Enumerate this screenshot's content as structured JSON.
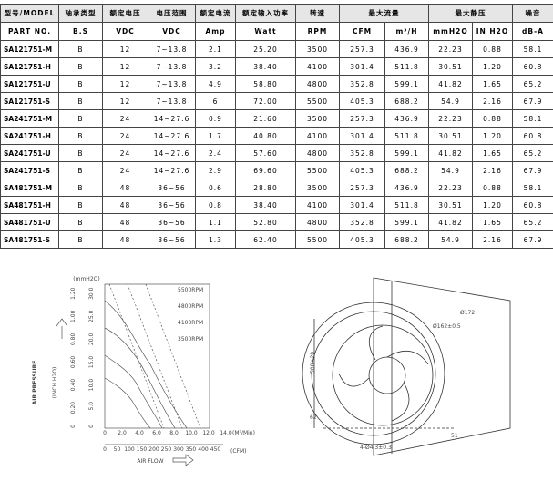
{
  "table": {
    "header_top": [
      "型号/MODEL",
      "轴承类型",
      "额定电压",
      "电压范围",
      "额定电流",
      "额定输入功率",
      "转速",
      "最大流量",
      "最大静压",
      "噪音"
    ],
    "header_units": [
      "PART NO.",
      "B.S",
      "VDC",
      "VDC",
      "Amp",
      "Watt",
      "RPM",
      "CFM",
      "m³/H",
      "mmH2O",
      "IN H2O",
      "dB-A"
    ],
    "rows": [
      [
        "SA121751-M",
        "B",
        "12",
        "7~13.8",
        "2.1",
        "25.20",
        "3500",
        "257.3",
        "436.9",
        "22.23",
        "0.88",
        "58.1"
      ],
      [
        "SA121751-H",
        "B",
        "12",
        "7~13.8",
        "3.2",
        "38.40",
        "4100",
        "301.4",
        "511.8",
        "30.51",
        "1.20",
        "60.8"
      ],
      [
        "SA121751-U",
        "B",
        "12",
        "7~13.8",
        "4.9",
        "58.80",
        "4800",
        "352.8",
        "599.1",
        "41.82",
        "1.65",
        "65.2"
      ],
      [
        "SA121751-S",
        "B",
        "12",
        "7~13.8",
        "6",
        "72.00",
        "5500",
        "405.3",
        "688.2",
        "54.9",
        "2.16",
        "67.9"
      ],
      [
        "SA241751-M",
        "B",
        "24",
        "14~27.6",
        "0.9",
        "21.60",
        "3500",
        "257.3",
        "436.9",
        "22.23",
        "0.88",
        "58.1"
      ],
      [
        "SA241751-H",
        "B",
        "24",
        "14~27.6",
        "1.7",
        "40.80",
        "4100",
        "301.4",
        "511.8",
        "30.51",
        "1.20",
        "60.8"
      ],
      [
        "SA241751-U",
        "B",
        "24",
        "14~27.6",
        "2.4",
        "57.60",
        "4800",
        "352.8",
        "599.1",
        "41.82",
        "1.65",
        "65.2"
      ],
      [
        "SA241751-S",
        "B",
        "24",
        "14~27.6",
        "2.9",
        "69.60",
        "5500",
        "405.3",
        "688.2",
        "54.9",
        "2.16",
        "67.9"
      ],
      [
        "SA481751-M",
        "B",
        "48",
        "36~56",
        "0.6",
        "28.80",
        "3500",
        "257.3",
        "436.9",
        "22.23",
        "0.88",
        "58.1"
      ],
      [
        "SA481751-H",
        "B",
        "48",
        "36~56",
        "0.8",
        "38.40",
        "4100",
        "301.4",
        "511.8",
        "30.51",
        "1.20",
        "60.8"
      ],
      [
        "SA481751-U",
        "B",
        "48",
        "36~56",
        "1.1",
        "52.80",
        "4800",
        "352.8",
        "599.1",
        "41.82",
        "1.65",
        "65.2"
      ],
      [
        "SA481751-S",
        "B",
        "48",
        "36~56",
        "1.3",
        "62.40",
        "5500",
        "405.3",
        "688.2",
        "54.9",
        "2.16",
        "67.9"
      ]
    ]
  },
  "curve_chart": {
    "y_label": "AIR PRESSURE",
    "x_label": "AIR FLOW",
    "y_unit_inch": "(INCH H2O)",
    "y_unit_mm": "(mmH2O)",
    "mm_ticks": [
      "0",
      "5.0",
      "10.0",
      "15.0",
      "20.0",
      "25.0",
      "30.0"
    ],
    "inch_ticks": [
      "0",
      "0.20",
      "0.40",
      "0.60",
      "0.80",
      "1.00",
      "1.20"
    ],
    "m3_unit": "(M³/Min)",
    "m3_ticks": [
      "0",
      "2.0",
      "4.0",
      "6.0",
      "8.0",
      "10.0",
      "12.0",
      "14.0"
    ],
    "cfm_unit": "(CFM)",
    "cfm_ticks": [
      "0",
      "50",
      "100",
      "150",
      "200",
      "250",
      "300",
      "350",
      "400",
      "450"
    ],
    "curve_labels": [
      "5500RPM",
      "4800RPM",
      "4100RPM",
      "3500RPM"
    ]
  },
  "drawing": {
    "labels": [
      "Ø172",
      "Ø162±0.5",
      "4-Ø4.3±0.3",
      "51",
      "62",
      "500±20"
    ]
  }
}
